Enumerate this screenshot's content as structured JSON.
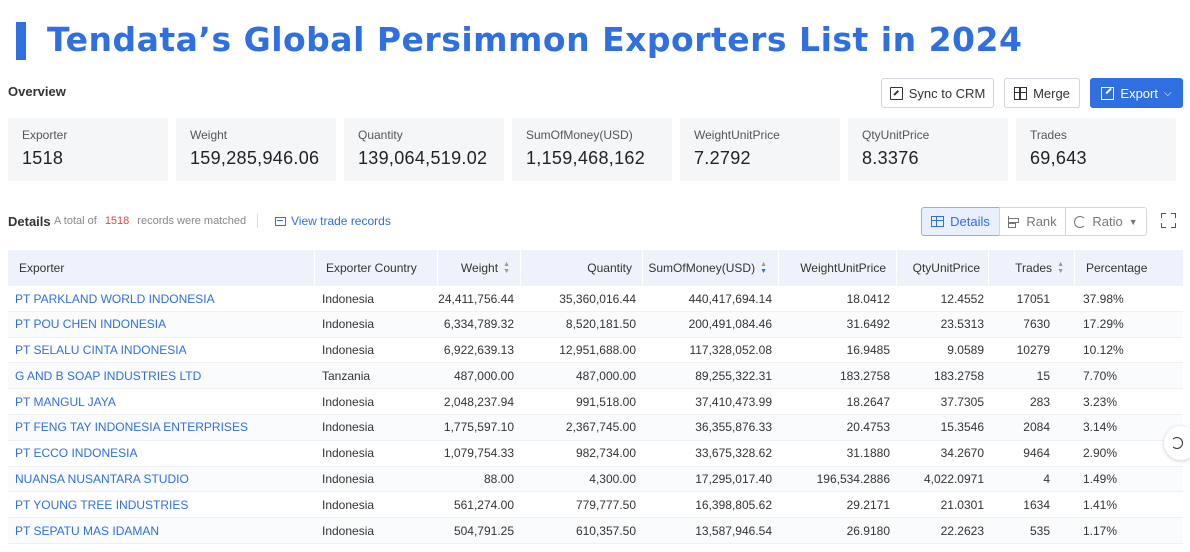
{
  "page": {
    "title": "Tendata’s Global Persimmon Exporters List in 2024",
    "overview_label": "Overview"
  },
  "toolbar": {
    "sync_label": "Sync to CRM",
    "merge_label": "Merge",
    "export_label": "Export"
  },
  "stats": [
    {
      "label": "Exporter",
      "value": "1518"
    },
    {
      "label": "Weight",
      "value": "159,285,946.06"
    },
    {
      "label": "Quantity",
      "value": "139,064,519.02"
    },
    {
      "label": "SumOfMoney(USD)",
      "value": "1,159,468,162"
    },
    {
      "label": "WeightUnitPrice",
      "value": "7.2792"
    },
    {
      "label": "QtyUnitPrice",
      "value": "8.3376"
    },
    {
      "label": "Trades",
      "value": "69,643"
    }
  ],
  "details": {
    "label": "Details",
    "matched_prefix": "A total of",
    "matched_count": "1518",
    "matched_suffix": "records were matched",
    "view_trade_records": "View trade records",
    "view_tabs": [
      "Details",
      "Rank",
      "Ratio"
    ]
  },
  "table": {
    "columns": [
      "Exporter",
      "Exporter Country",
      "Weight",
      "Quantity",
      "SumOfMoney(USD)",
      "WeightUnitPrice",
      "QtyUnitPrice",
      "Trades",
      "Percentage"
    ],
    "sorted_column": "SumOfMoney(USD)",
    "rows": [
      [
        "PT PARKLAND WORLD INDONESIA",
        "Indonesia",
        "24,411,756.44",
        "35,360,016.44",
        "440,417,694.14",
        "18.0412",
        "12.4552",
        "17051",
        "37.98%"
      ],
      [
        "PT POU CHEN INDONESIA",
        "Indonesia",
        "6,334,789.32",
        "8,520,181.50",
        "200,491,084.46",
        "31.6492",
        "23.5313",
        "7630",
        "17.29%"
      ],
      [
        "PT SELALU CINTA INDONESIA",
        "Indonesia",
        "6,922,639.13",
        "12,951,688.00",
        "117,328,052.08",
        "16.9485",
        "9.0589",
        "10279",
        "10.12%"
      ],
      [
        "G AND B SOAP INDUSTRIES LTD",
        "Tanzania",
        "487,000.00",
        "487,000.00",
        "89,255,322.31",
        "183.2758",
        "183.2758",
        "15",
        "7.70%"
      ],
      [
        "PT MANGUL JAYA",
        "Indonesia",
        "2,048,237.94",
        "991,518.00",
        "37,410,473.99",
        "18.2647",
        "37.7305",
        "283",
        "3.23%"
      ],
      [
        "PT FENG TAY INDONESIA ENTERPRISES",
        "Indonesia",
        "1,775,597.10",
        "2,367,745.00",
        "36,355,876.33",
        "20.4753",
        "15.3546",
        "2084",
        "3.14%"
      ],
      [
        "PT ECCO INDONESIA",
        "Indonesia",
        "1,079,754.33",
        "982,734.00",
        "33,675,328.62",
        "31.1880",
        "34.2670",
        "9464",
        "2.90%"
      ],
      [
        "NUANSA NUSANTARA STUDIO",
        "Indonesia",
        "88.00",
        "4,300.00",
        "17,295,017.40",
        "196,534.2886",
        "4,022.0971",
        "4",
        "1.49%"
      ],
      [
        "PT YOUNG TREE INDUSTRIES",
        "Indonesia",
        "561,274.00",
        "779,777.50",
        "16,398,805.62",
        "29.2171",
        "21.0301",
        "1634",
        "1.41%"
      ],
      [
        "PT SEPATU MAS IDAMAN",
        "Indonesia",
        "504,791.25",
        "610,357.50",
        "13,587,946.54",
        "26.9180",
        "22.2623",
        "535",
        "1.17%"
      ]
    ]
  },
  "colors": {
    "accent": "#2f6fe0",
    "highlight_count": "#e0484a",
    "header_bg": "#eef3fb",
    "stat_bg": "#f5f6f8"
  }
}
